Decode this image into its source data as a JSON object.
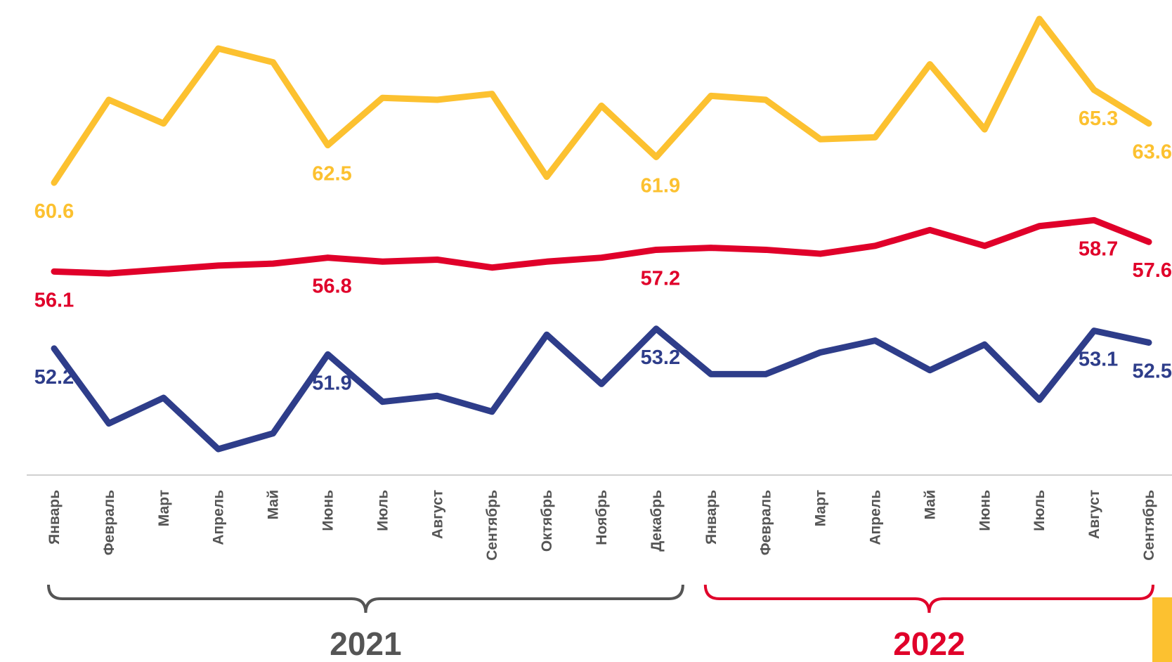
{
  "chart_data": {
    "type": "line",
    "categories": [
      "Январь",
      "Февраль",
      "Март",
      "Апрель",
      "Май",
      "Июнь",
      "Июль",
      "Август",
      "Сентябрь",
      "Октябрь",
      "Ноябрь",
      "Декабрь",
      "Январь",
      "Февраль",
      "Март",
      "Апрель",
      "Май",
      "Июнь",
      "Июль",
      "Август",
      "Сентябрь"
    ],
    "periods": [
      {
        "label": "2021",
        "color": "#555555"
      },
      {
        "label": "2022",
        "color": "#e0002a"
      }
    ],
    "ylim": [
      46,
      69.5
    ],
    "series": [
      {
        "color": "#fcc130",
        "values": [
          60.6,
          64.8,
          63.6,
          67.4,
          66.7,
          62.5,
          64.9,
          64.8,
          65.1,
          60.9,
          64.5,
          61.9,
          65.0,
          64.8,
          62.8,
          62.9,
          66.6,
          63.3,
          68.9,
          65.3,
          63.6
        ],
        "value_labels": [
          "60.6",
          null,
          null,
          null,
          null,
          "62.5",
          null,
          null,
          null,
          null,
          null,
          "61.9",
          null,
          null,
          null,
          null,
          null,
          null,
          null,
          "65.3",
          "63.6"
        ]
      },
      {
        "color": "#e0002a",
        "values": [
          56.1,
          56.0,
          56.2,
          56.4,
          56.5,
          56.8,
          56.6,
          56.7,
          56.3,
          56.6,
          56.8,
          57.2,
          57.3,
          57.2,
          57.0,
          57.4,
          58.2,
          57.4,
          58.4,
          58.7,
          57.6
        ],
        "value_labels": [
          "56.1",
          null,
          null,
          null,
          null,
          "56.8",
          null,
          null,
          null,
          null,
          null,
          "57.2",
          null,
          null,
          null,
          null,
          null,
          null,
          null,
          "58.7",
          "57.6"
        ]
      },
      {
        "color": "#2e3d8a",
        "values": [
          52.2,
          48.4,
          49.7,
          47.1,
          47.9,
          51.9,
          49.5,
          49.8,
          49.0,
          52.9,
          50.4,
          53.2,
          50.9,
          50.9,
          52.0,
          52.6,
          51.1,
          52.4,
          49.6,
          53.1,
          52.5
        ],
        "value_labels": [
          "52.2",
          null,
          null,
          null,
          null,
          "51.9",
          null,
          null,
          null,
          null,
          null,
          "53.2",
          null,
          null,
          null,
          null,
          null,
          null,
          null,
          "53.1",
          "52.5"
        ]
      }
    ]
  }
}
